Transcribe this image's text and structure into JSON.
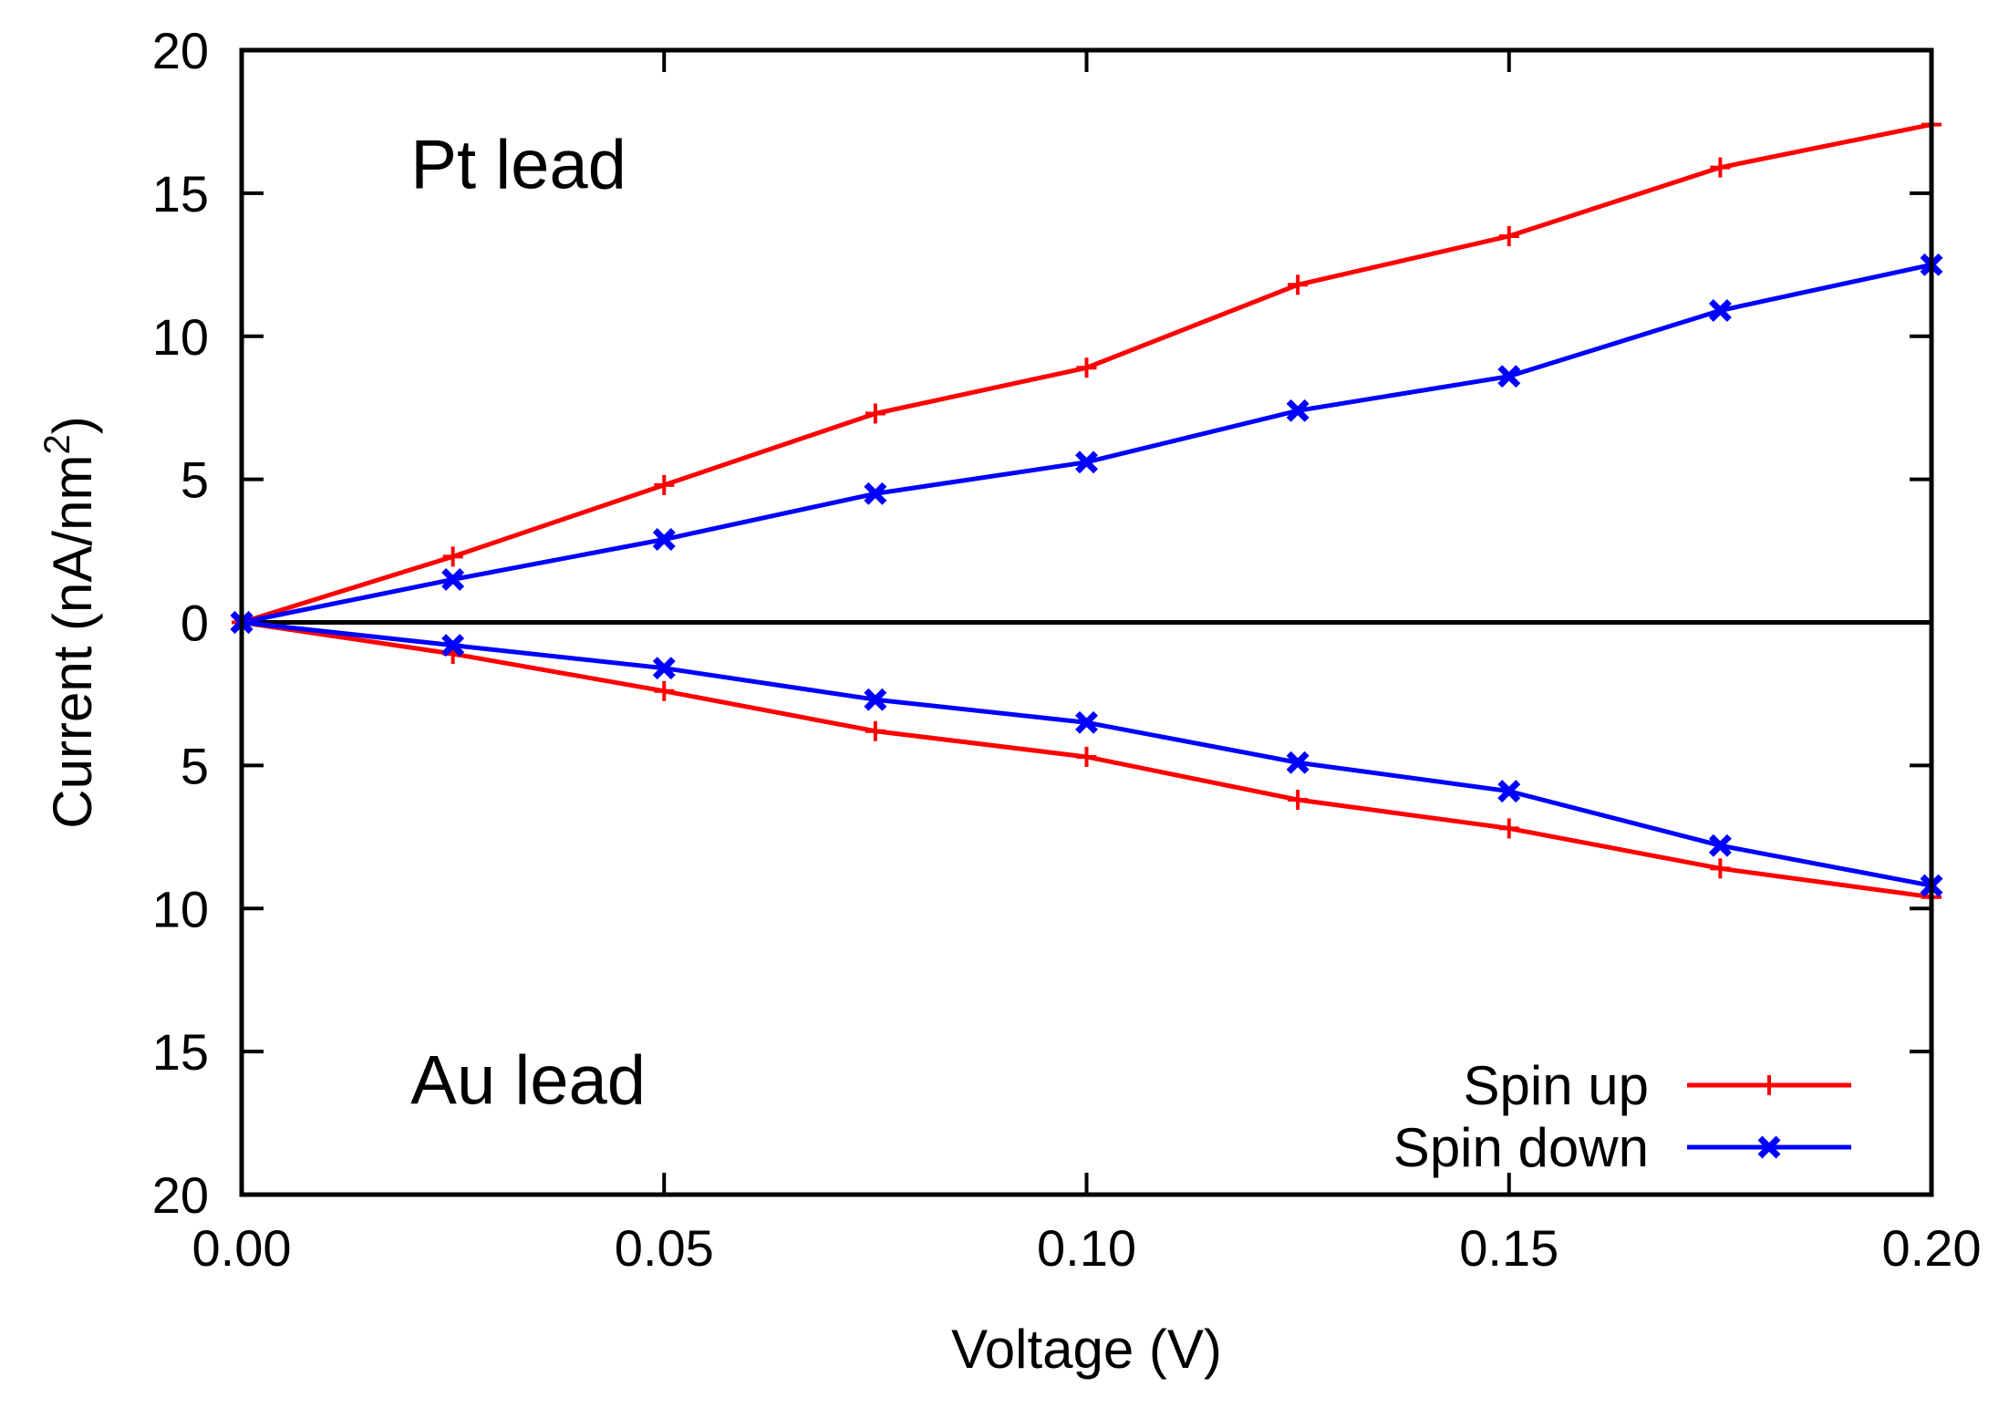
{
  "chart_data": {
    "type": "line",
    "xlabel": "Voltage (V)",
    "ylabel": "Current (nA/nm",
    "ylabel_sup": "2",
    "ylabel_close": ")",
    "xlim": [
      0.0,
      0.2
    ],
    "ylim": [
      -20,
      20
    ],
    "x_ticks": [
      0.0,
      0.05,
      0.1,
      0.15,
      0.2
    ],
    "x_tick_labels": [
      "0.00",
      "0.05",
      "0.10",
      "0.15",
      "0.20"
    ],
    "y_ticks": [
      20,
      15,
      10,
      5,
      0,
      -5,
      -10,
      -15,
      -20
    ],
    "y_tick_labels": [
      "20",
      "15",
      "10",
      "5",
      "0",
      "5",
      "10",
      "15",
      "20"
    ],
    "zero_line": true,
    "grid": false,
    "legend_position": "bottom-right",
    "annotations": [
      {
        "text": "Pt lead",
        "x": 0.02,
        "y": 16.0
      },
      {
        "text": "Au lead",
        "x": 0.02,
        "y": -16.0
      }
    ],
    "x": [
      0.0,
      0.025,
      0.05,
      0.075,
      0.1,
      0.125,
      0.15,
      0.175,
      0.2
    ],
    "series": [
      {
        "name": "Spin up",
        "color": "#ff0000",
        "marker": "plus",
        "legend": true,
        "values": [
          0.0,
          2.3,
          4.8,
          7.3,
          8.9,
          11.8,
          13.5,
          15.9,
          17.4
        ]
      },
      {
        "name": "Spin down",
        "color": "#0000ff",
        "marker": "cross",
        "legend": true,
        "values": [
          0.0,
          1.5,
          2.9,
          4.5,
          5.6,
          7.4,
          8.6,
          10.9,
          12.5
        ]
      },
      {
        "name": "",
        "color": "#ff0000",
        "marker": "plus",
        "legend": false,
        "values": [
          0.0,
          -1.1,
          -2.4,
          -3.8,
          -4.7,
          -6.2,
          -7.2,
          -8.6,
          -9.6
        ]
      },
      {
        "name": "",
        "color": "#0000ff",
        "marker": "cross",
        "legend": false,
        "values": [
          0.0,
          -0.8,
          -1.6,
          -2.7,
          -3.5,
          -4.9,
          -5.9,
          -7.8,
          -9.2
        ]
      }
    ]
  }
}
